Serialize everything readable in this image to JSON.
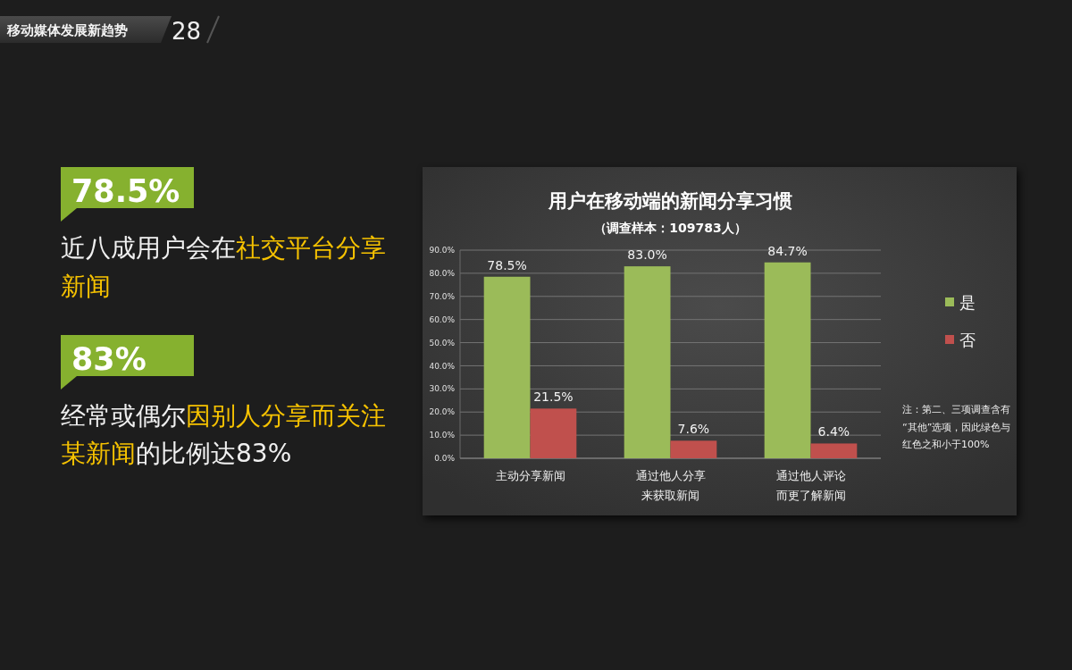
{
  "chart_data": {
    "type": "bar",
    "title": "用户在移动端的新闻分享习惯",
    "subtitle": "（调查样本：109783人）",
    "categories": [
      "主动分享新闻",
      "通过他人分享来获取新闻",
      "通过他人评论而更了解新闻"
    ],
    "series": [
      {
        "name": "是",
        "color": "#9bbb59",
        "values": [
          78.5,
          83.0,
          84.7
        ],
        "value_labels": [
          "78.5%",
          "83.0%",
          "84.7%"
        ]
      },
      {
        "name": "否",
        "color": "#c0504d",
        "values": [
          21.5,
          7.6,
          6.4
        ],
        "value_labels": [
          "21.5%",
          "7.6%",
          "6.4%"
        ]
      }
    ],
    "ylim": [
      0,
      90
    ],
    "yticks": [
      {
        "value": 0,
        "label": "0.0%"
      },
      {
        "value": 10,
        "label": "10.0%"
      },
      {
        "value": 20,
        "label": "20.0%"
      },
      {
        "value": 30,
        "label": "30.0%"
      },
      {
        "value": 40,
        "label": "40.0%"
      },
      {
        "value": 50,
        "label": "50.0%"
      },
      {
        "value": 60,
        "label": "60.0%"
      },
      {
        "value": 70,
        "label": "70.0%"
      },
      {
        "value": 80,
        "label": "80.0%"
      },
      {
        "value": 90,
        "label": "90.0%"
      }
    ],
    "grid": "y",
    "legend": "right",
    "annotations": [
      "移动媒体发展新趋势",
      "28",
      "78.5%",
      "近八成用户会在",
      "社交平台分享",
      "新闻",
      "83%",
      "经常或偶尔",
      "因别人分享而关注",
      "某新闻",
      "的比例达83%",
      "注：第二、三项调查含有“其他”选项，因此绿色与红色之和小于100%"
    ]
  }
}
